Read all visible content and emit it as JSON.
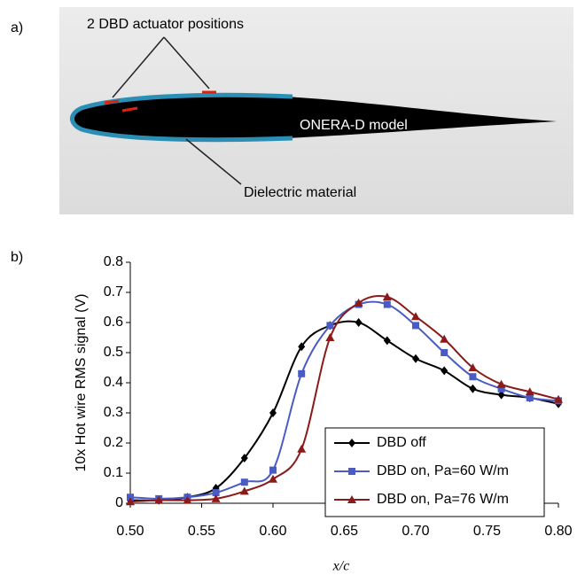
{
  "panel_a": {
    "label": "a)",
    "annotation_actuators": "2 DBD actuator positions",
    "model_label": "ONERA-D model",
    "annotation_dielectric": "Dielectric material"
  },
  "panel_b_label": "b)",
  "chart_data": {
    "type": "line",
    "ylabel": "10x Hot wire RMS signal (V)",
    "xlabel": "x/c",
    "x": [
      0.5,
      0.52,
      0.54,
      0.56,
      0.58,
      0.6,
      0.62,
      0.64,
      0.66,
      0.68,
      0.7,
      0.72,
      0.74,
      0.76,
      0.78,
      0.8
    ],
    "series": [
      {
        "name": "DBD off",
        "color": "#000000",
        "marker": "diamond",
        "values": [
          0.01,
          0.01,
          0.02,
          0.05,
          0.15,
          0.3,
          0.52,
          0.59,
          0.6,
          0.54,
          0.48,
          0.44,
          0.38,
          0.36,
          0.35,
          0.33
        ]
      },
      {
        "name": "DBD on, Pa=60 W/m",
        "color": "#4a5cc4",
        "marker": "square",
        "values": [
          0.02,
          0.015,
          0.02,
          0.035,
          0.07,
          0.11,
          0.43,
          0.59,
          0.66,
          0.66,
          0.59,
          0.5,
          0.42,
          0.38,
          0.35,
          0.34
        ]
      },
      {
        "name": "DBD on, Pa=76 W/m",
        "color": "#8b1a1a",
        "marker": "triangle",
        "values": [
          0.005,
          0.01,
          0.01,
          0.015,
          0.04,
          0.08,
          0.18,
          0.55,
          0.665,
          0.685,
          0.62,
          0.545,
          0.45,
          0.395,
          0.37,
          0.345
        ]
      }
    ],
    "xlim": [
      0.5,
      0.8
    ],
    "xticks": [
      {
        "value": 0.5,
        "label": "0.50"
      },
      {
        "value": 0.55,
        "label": "0.55"
      },
      {
        "value": 0.6,
        "label": "0.60"
      },
      {
        "value": 0.65,
        "label": "0.65"
      },
      {
        "value": 0.7,
        "label": "0.70"
      },
      {
        "value": 0.75,
        "label": "0.75"
      },
      {
        "value": 0.8,
        "label": "0.80"
      }
    ],
    "ylim": [
      0,
      0.8
    ],
    "yticks": [
      0,
      0.1,
      0.2,
      0.3,
      0.4,
      0.5,
      0.6,
      0.7,
      0.8
    ],
    "legend": "lower right"
  }
}
